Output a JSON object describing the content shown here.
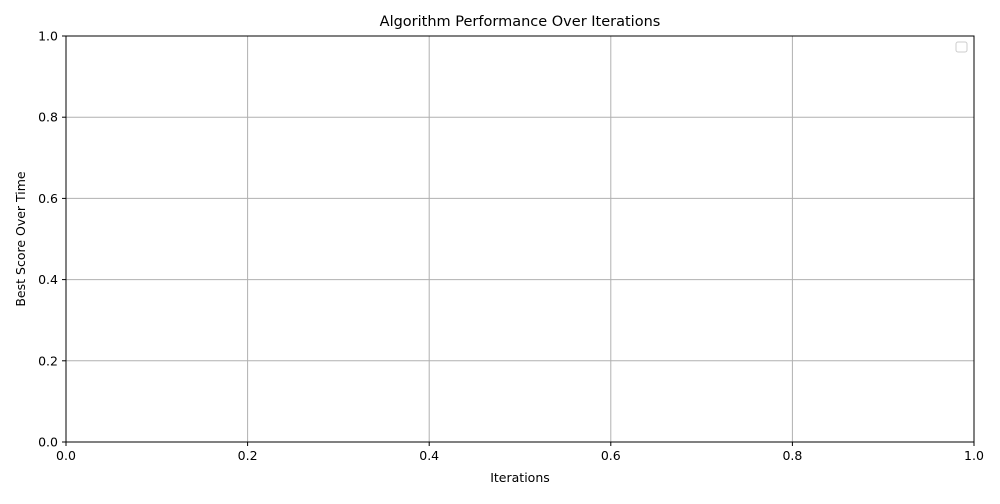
{
  "chart_data": {
    "type": "line",
    "title": "Algorithm Performance Over Iterations",
    "xlabel": "Iterations",
    "ylabel": "Best Score Over Time",
    "xlim": [
      0.0,
      1.0
    ],
    "ylim": [
      0.0,
      1.0
    ],
    "x_ticks": [
      "0.0",
      "0.2",
      "0.4",
      "0.6",
      "0.8",
      "1.0"
    ],
    "y_ticks": [
      "0.0",
      "0.2",
      "0.4",
      "0.6",
      "0.8",
      "1.0"
    ],
    "grid": true,
    "legend": {
      "placement": "top-right",
      "entries": []
    },
    "series": []
  },
  "colors": {
    "grid": "#b0b0b0",
    "axis": "#000000",
    "legend_border": "#cccccc",
    "background": "#ffffff"
  }
}
